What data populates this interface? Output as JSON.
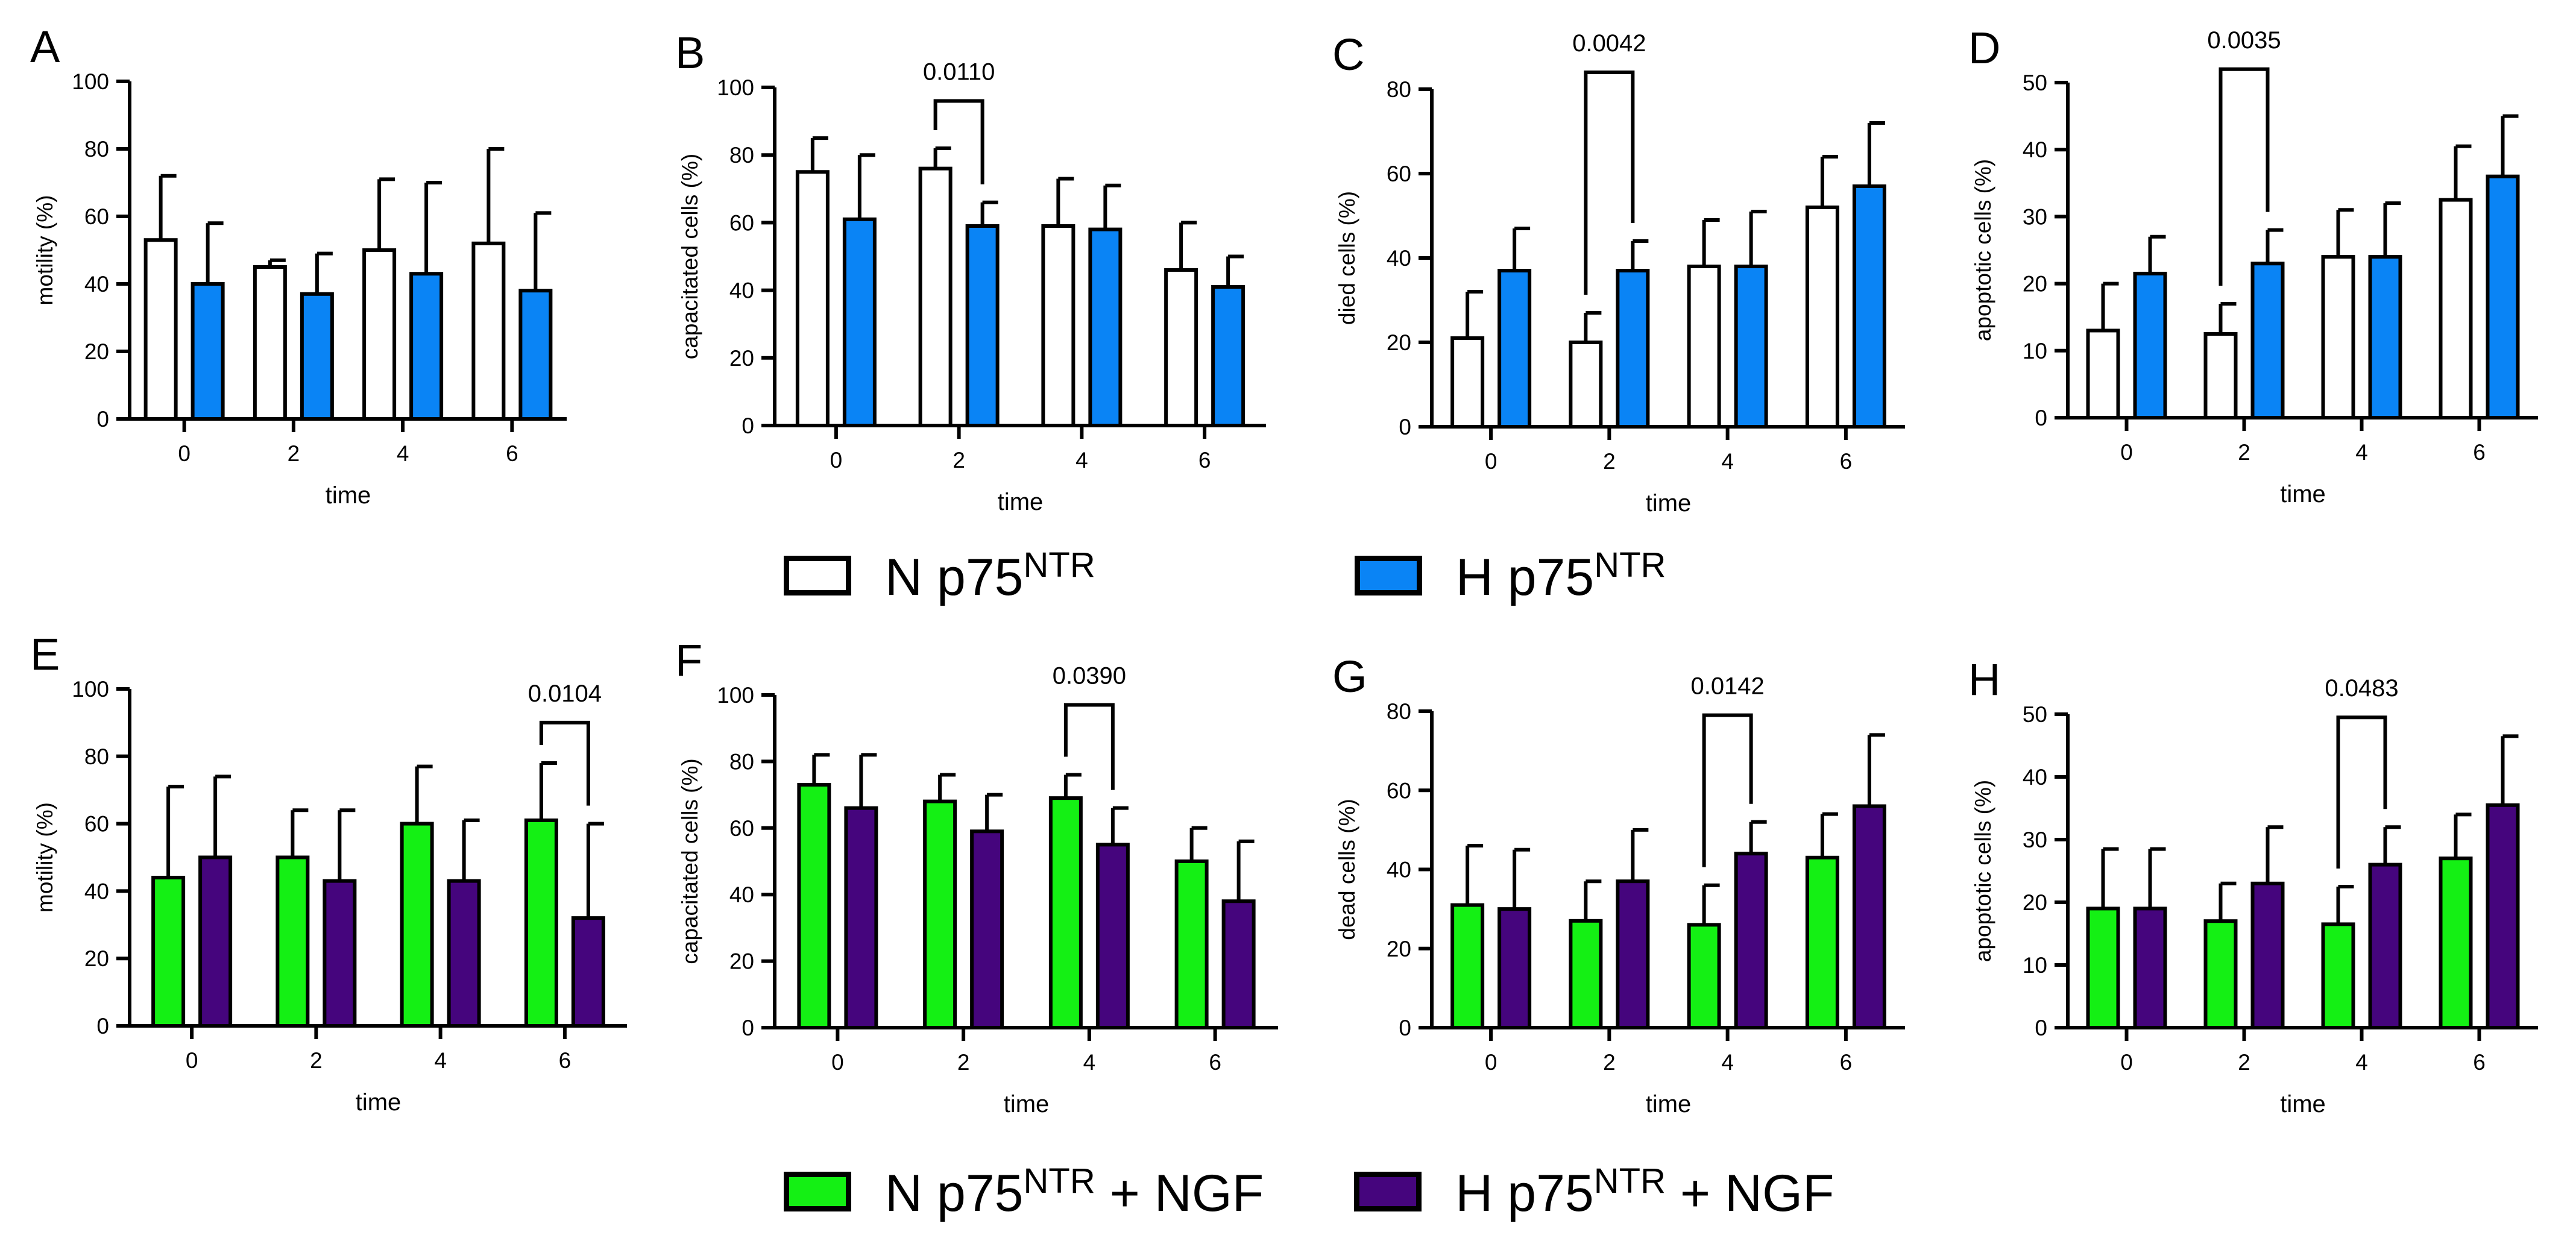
{
  "legends": [
    {
      "items": [
        {
          "prefix": "N p75",
          "sup": "NTR",
          "suffix": "",
          "color": "#ffffff"
        },
        {
          "prefix": "H p75",
          "sup": "NTR",
          "suffix": "",
          "color": "#0a84f5"
        }
      ]
    },
    {
      "items": [
        {
          "prefix": "N p75",
          "sup": "NTR",
          "suffix": " + NGF",
          "color": "#14f014"
        },
        {
          "prefix": "H p75",
          "sup": "NTR",
          "suffix": " + NGF",
          "color": "#45057d"
        }
      ]
    }
  ],
  "chart_data": [
    {
      "panel": "A",
      "type": "bar",
      "xlabel": "time",
      "ylabel": "motility (%)",
      "categories": [
        "0",
        "2",
        "4",
        "6"
      ],
      "ylim": [
        0,
        100
      ],
      "yticks": [
        0,
        20,
        40,
        60,
        80,
        100
      ],
      "series": [
        {
          "name": "N p75NTR",
          "color": "#ffffff",
          "values": [
            53,
            45,
            50,
            52
          ],
          "errors": [
            19,
            2,
            21,
            28
          ]
        },
        {
          "name": "H p75NTR",
          "color": "#0a84f5",
          "values": [
            40,
            37,
            43,
            38
          ],
          "errors": [
            18,
            12,
            27,
            23
          ]
        }
      ],
      "annotations": []
    },
    {
      "panel": "B",
      "type": "bar",
      "xlabel": "time",
      "ylabel": "capacitated cells (%)",
      "categories": [
        "0",
        "2",
        "4",
        "6"
      ],
      "ylim": [
        0,
        100
      ],
      "yticks": [
        0,
        20,
        40,
        60,
        80,
        100
      ],
      "series": [
        {
          "name": "N p75NTR",
          "color": "#ffffff",
          "values": [
            75,
            76,
            59,
            46
          ],
          "errors": [
            10,
            6,
            14,
            14
          ]
        },
        {
          "name": "H p75NTR",
          "color": "#0a84f5",
          "values": [
            61,
            59,
            58,
            41
          ],
          "errors": [
            19,
            7,
            13,
            9
          ]
        }
      ],
      "annotations": [
        {
          "category": 1,
          "label": "0.0110",
          "top": 96
        }
      ]
    },
    {
      "panel": "C",
      "type": "bar",
      "xlabel": "time",
      "ylabel": "died cells (%)",
      "categories": [
        "0",
        "2",
        "4",
        "6"
      ],
      "ylim": [
        0,
        80
      ],
      "yticks": [
        0,
        20,
        40,
        60,
        80
      ],
      "series": [
        {
          "name": "N p75NTR",
          "color": "#ffffff",
          "values": [
            21,
            20,
            38,
            52
          ],
          "errors": [
            11,
            7,
            11,
            12
          ]
        },
        {
          "name": "H p75NTR",
          "color": "#0a84f5",
          "values": [
            37,
            37,
            38,
            57
          ],
          "errors": [
            10,
            7,
            13,
            15
          ]
        }
      ],
      "annotations": [
        {
          "category": 1,
          "label": "0.0042",
          "top": 84
        }
      ]
    },
    {
      "panel": "D",
      "type": "bar",
      "xlabel": "time",
      "ylabel": "apoptotic cells (%)",
      "categories": [
        "0",
        "2",
        "4",
        "6"
      ],
      "ylim": [
        0,
        50
      ],
      "yticks": [
        0,
        10,
        20,
        30,
        40,
        50
      ],
      "series": [
        {
          "name": "N p75NTR",
          "color": "#ffffff",
          "values": [
            13,
            12.5,
            24,
            32.5
          ],
          "errors": [
            7,
            4.5,
            7,
            8
          ]
        },
        {
          "name": "H p75NTR",
          "color": "#0a84f5",
          "values": [
            21.5,
            23,
            24,
            36
          ],
          "errors": [
            5.5,
            5,
            8,
            9
          ]
        }
      ],
      "annotations": [
        {
          "category": 1,
          "label": "0.0035",
          "top": 52
        }
      ]
    },
    {
      "panel": "E",
      "type": "bar",
      "xlabel": "time",
      "ylabel": "motility (%)",
      "categories": [
        "0",
        "2",
        "4",
        "6"
      ],
      "ylim": [
        0,
        100
      ],
      "yticks": [
        0,
        20,
        40,
        60,
        80,
        100
      ],
      "series": [
        {
          "name": "N p75NTR + NGF",
          "color": "#14f014",
          "values": [
            44,
            50,
            60,
            61
          ],
          "errors": [
            27,
            14,
            17,
            17
          ]
        },
        {
          "name": "H p75NTR + NGF",
          "color": "#45057d",
          "values": [
            50,
            43,
            43,
            32
          ],
          "errors": [
            24,
            21,
            18,
            28
          ]
        }
      ],
      "annotations": [
        {
          "category": 3,
          "label": "0.0104",
          "top": 90
        }
      ]
    },
    {
      "panel": "F",
      "type": "bar",
      "xlabel": "time",
      "ylabel": "capacitated cells (%)",
      "categories": [
        "0",
        "2",
        "4",
        "6"
      ],
      "ylim": [
        0,
        100
      ],
      "yticks": [
        0,
        20,
        40,
        60,
        80,
        100
      ],
      "series": [
        {
          "name": "N p75NTR + NGF",
          "color": "#14f014",
          "values": [
            73,
            68,
            69,
            50
          ],
          "errors": [
            9,
            8,
            7,
            10
          ]
        },
        {
          "name": "H p75NTR + NGF",
          "color": "#45057d",
          "values": [
            66,
            59,
            55,
            38
          ],
          "errors": [
            16,
            11,
            11,
            18
          ]
        }
      ],
      "annotations": [
        {
          "category": 2,
          "label": "0.0390",
          "top": 97
        }
      ]
    },
    {
      "panel": "G",
      "type": "bar",
      "xlabel": "time",
      "ylabel": "dead cells (%)",
      "categories": [
        "0",
        "2",
        "4",
        "6"
      ],
      "ylim": [
        0,
        80
      ],
      "yticks": [
        0,
        20,
        40,
        60,
        80
      ],
      "series": [
        {
          "name": "N p75NTR + NGF",
          "color": "#14f014",
          "values": [
            31,
            27,
            26,
            43
          ],
          "errors": [
            15,
            10,
            10,
            11
          ]
        },
        {
          "name": "H p75NTR + NGF",
          "color": "#45057d",
          "values": [
            30,
            37,
            44,
            56
          ],
          "errors": [
            15,
            13,
            8,
            18
          ]
        }
      ],
      "annotations": [
        {
          "category": 2,
          "label": "0.0142",
          "top": 79
        }
      ]
    },
    {
      "panel": "H",
      "type": "bar",
      "xlabel": "time",
      "ylabel": "apoptotic cells (%)",
      "categories": [
        "0",
        "2",
        "4",
        "6"
      ],
      "ylim": [
        0,
        50
      ],
      "yticks": [
        0,
        10,
        20,
        30,
        40,
        50
      ],
      "series": [
        {
          "name": "N p75NTR + NGF",
          "color": "#14f014",
          "values": [
            19,
            17,
            16.5,
            27
          ],
          "errors": [
            9.5,
            6,
            6,
            7
          ]
        },
        {
          "name": "H p75NTR + NGF",
          "color": "#45057d",
          "values": [
            19,
            23,
            26,
            35.5
          ],
          "errors": [
            9.5,
            9,
            6,
            11
          ]
        }
      ],
      "annotations": [
        {
          "category": 2,
          "label": "0.0483",
          "top": 49.5
        }
      ]
    }
  ]
}
